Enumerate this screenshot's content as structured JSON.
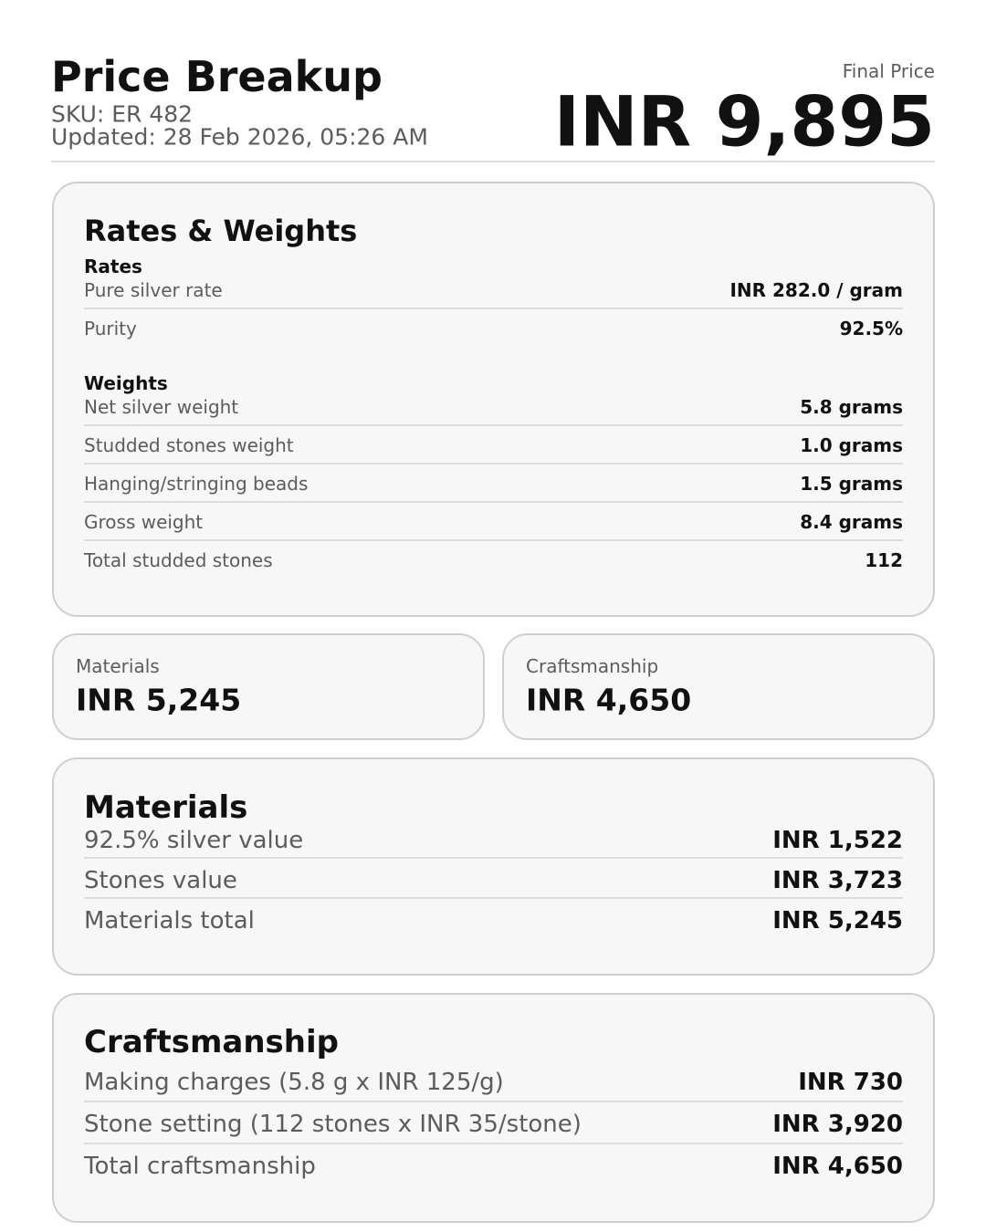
{
  "header": {
    "title": "Price Breakup",
    "sku": "SKU: ER 482",
    "updated": "Updated: 28 Feb 2026, 05:26 AM",
    "final_price_label": "Final Price",
    "final_price": "INR 9,895"
  },
  "rates_weights": {
    "title": "Rates & Weights",
    "rates_heading": "Rates",
    "rates": [
      {
        "label": "Pure silver rate",
        "value": "INR 282.0 / gram"
      },
      {
        "label": "Purity",
        "value": "92.5%"
      }
    ],
    "weights_heading": "Weights",
    "weights": [
      {
        "label": "Net silver weight",
        "value": "5.8 grams"
      },
      {
        "label": "Studded stones weight",
        "value": "1.0 grams"
      },
      {
        "label": "Hanging/stringing beads",
        "value": "1.5 grams"
      },
      {
        "label": "Gross weight",
        "value": "8.4 grams"
      },
      {
        "label": "Total studded stones",
        "value": "112"
      }
    ]
  },
  "summary": [
    {
      "label": "Materials",
      "value": "INR 5,245"
    },
    {
      "label": "Craftsmanship",
      "value": "INR 4,650"
    }
  ],
  "materials": {
    "title": "Materials",
    "rows": [
      {
        "label": "92.5% silver value",
        "value": "INR 1,522"
      },
      {
        "label": "Stones value",
        "value": "INR 3,723"
      },
      {
        "label": "Materials total",
        "value": "INR 5,245"
      }
    ]
  },
  "craftsmanship": {
    "title": "Craftsmanship",
    "rows": [
      {
        "label": "Making charges (5.8 g x INR 125/g)",
        "value": "INR 730"
      },
      {
        "label": "Stone setting (112 stones x INR 35/stone)",
        "value": "INR 3,920"
      },
      {
        "label": "Total craftsmanship",
        "value": "INR 4,650"
      }
    ]
  }
}
